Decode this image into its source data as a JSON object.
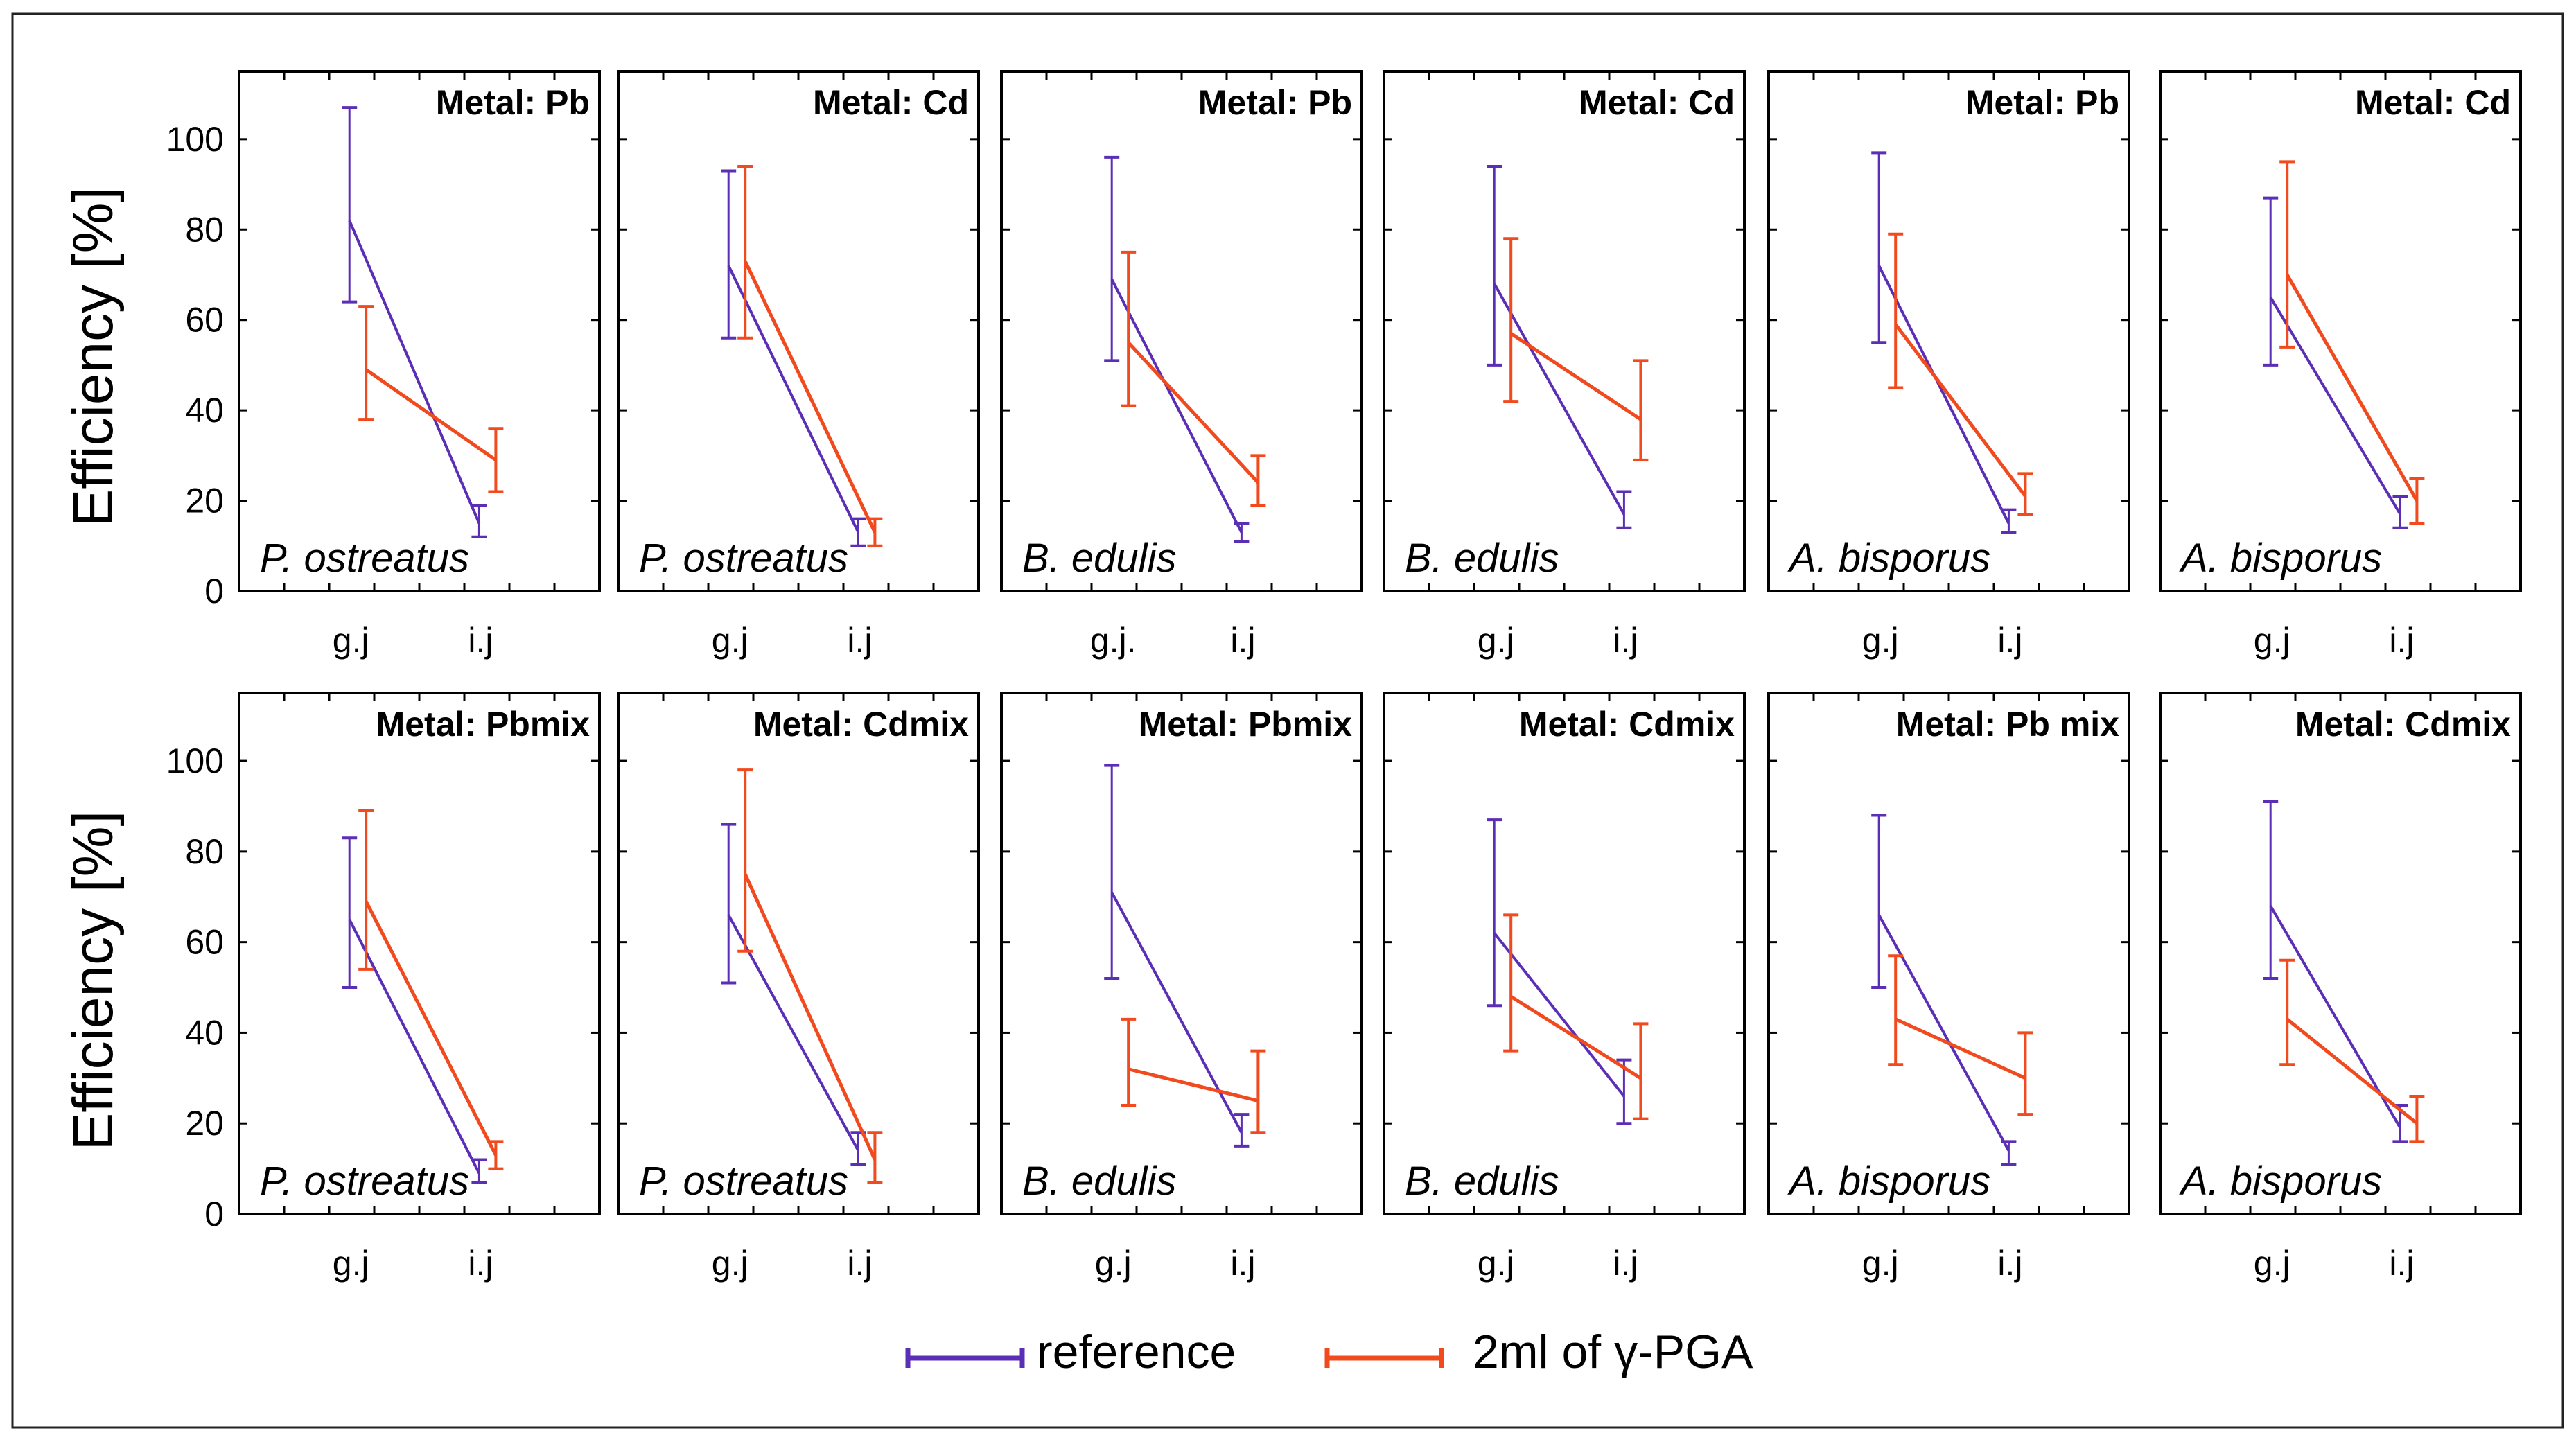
{
  "chart_data": {
    "type": "line",
    "ylabel": "Efficiency [%]",
    "ylim": [
      0,
      115
    ],
    "yticks": [
      0,
      20,
      40,
      60,
      80,
      100
    ],
    "legend": {
      "position": "bottom-center",
      "series": [
        {
          "name": "reference",
          "color": "#5b2fb5"
        },
        {
          "name": "2ml of γ-PGA",
          "color": "#f04a1e"
        }
      ]
    },
    "panels": [
      {
        "row": 1,
        "col": 1,
        "title": "Metal: Pb",
        "species": "P. ostreatus",
        "categories": [
          "g.j",
          "i.j"
        ],
        "series": [
          {
            "name": "reference",
            "values": [
              82,
              15
            ],
            "err_low": [
              64,
              12
            ],
            "err_high": [
              107,
              19
            ]
          },
          {
            "name": "2ml of γ-PGA",
            "values": [
              49,
              29
            ],
            "err_low": [
              38,
              22
            ],
            "err_high": [
              63,
              36
            ]
          }
        ]
      },
      {
        "row": 1,
        "col": 2,
        "title": "Metal: Cd",
        "species": "P. ostreatus",
        "categories": [
          "g.j",
          "i.j"
        ],
        "series": [
          {
            "name": "reference",
            "values": [
              72,
              13
            ],
            "err_low": [
              56,
              10
            ],
            "err_high": [
              93,
              16
            ]
          },
          {
            "name": "2ml of γ-PGA",
            "values": [
              73,
              13
            ],
            "err_low": [
              56,
              10
            ],
            "err_high": [
              94,
              16
            ]
          }
        ]
      },
      {
        "row": 1,
        "col": 3,
        "title": "Metal: Pb",
        "species": "B. edulis",
        "categories": [
          "g.j.",
          "i.j"
        ],
        "series": [
          {
            "name": "reference",
            "values": [
              69,
              13
            ],
            "err_low": [
              51,
              11
            ],
            "err_high": [
              96,
              15
            ]
          },
          {
            "name": "2ml of γ-PGA",
            "values": [
              55,
              24
            ],
            "err_low": [
              41,
              19
            ],
            "err_high": [
              75,
              30
            ]
          }
        ]
      },
      {
        "row": 1,
        "col": 4,
        "title": "Metal: Cd",
        "species": "B. edulis",
        "categories": [
          "g.j",
          "i.j"
        ],
        "series": [
          {
            "name": "reference",
            "values": [
              68,
              17
            ],
            "err_low": [
              50,
              14
            ],
            "err_high": [
              94,
              22
            ]
          },
          {
            "name": "2ml of γ-PGA",
            "values": [
              57,
              38
            ],
            "err_low": [
              42,
              29
            ],
            "err_high": [
              78,
              51
            ]
          }
        ]
      },
      {
        "row": 1,
        "col": 5,
        "title": "Metal: Pb",
        "species": "A. bisporus",
        "categories": [
          "g.j",
          "i.j"
        ],
        "series": [
          {
            "name": "reference",
            "values": [
              72,
              15
            ],
            "err_low": [
              55,
              13
            ],
            "err_high": [
              97,
              18
            ]
          },
          {
            "name": "2ml of γ-PGA",
            "values": [
              59,
              21
            ],
            "err_low": [
              45,
              17
            ],
            "err_high": [
              79,
              26
            ]
          }
        ]
      },
      {
        "row": 1,
        "col": 6,
        "title": "Metal: Cd",
        "species": "A. bisporus",
        "categories": [
          "g.j",
          "i.j"
        ],
        "series": [
          {
            "name": "reference",
            "values": [
              65,
              17
            ],
            "err_low": [
              50,
              14
            ],
            "err_high": [
              87,
              21
            ]
          },
          {
            "name": "2ml of γ-PGA",
            "values": [
              70,
              20
            ],
            "err_low": [
              54,
              15
            ],
            "err_high": [
              95,
              25
            ]
          }
        ]
      },
      {
        "row": 2,
        "col": 1,
        "title": "Metal: Pbmix",
        "species": "P. ostreatus",
        "categories": [
          "g.j",
          "i.j"
        ],
        "series": [
          {
            "name": "reference",
            "values": [
              65,
              9
            ],
            "err_low": [
              50,
              7
            ],
            "err_high": [
              83,
              12
            ]
          },
          {
            "name": "2ml of γ-PGA",
            "values": [
              69,
              13
            ],
            "err_low": [
              54,
              10
            ],
            "err_high": [
              89,
              16
            ]
          }
        ]
      },
      {
        "row": 2,
        "col": 2,
        "title": "Metal: Cdmix",
        "species": "P. ostreatus",
        "categories": [
          "g.j",
          "i.j"
        ],
        "series": [
          {
            "name": "reference",
            "values": [
              66,
              14
            ],
            "err_low": [
              51,
              11
            ],
            "err_high": [
              86,
              18
            ]
          },
          {
            "name": "2ml of γ-PGA",
            "values": [
              75,
              12
            ],
            "err_low": [
              58,
              7
            ],
            "err_high": [
              98,
              18
            ]
          }
        ]
      },
      {
        "row": 2,
        "col": 3,
        "title": "Metal: Pbmix",
        "species": "B. edulis",
        "categories": [
          "g.j",
          "i.j"
        ],
        "series": [
          {
            "name": "reference",
            "values": [
              71,
              18
            ],
            "err_low": [
              52,
              15
            ],
            "err_high": [
              99,
              22
            ]
          },
          {
            "name": "2ml of γ-PGA",
            "values": [
              32,
              25
            ],
            "err_low": [
              24,
              18
            ],
            "err_high": [
              43,
              36
            ]
          }
        ]
      },
      {
        "row": 2,
        "col": 4,
        "title": "Metal: Cdmix",
        "species": "B. edulis",
        "categories": [
          "g.j",
          "i.j"
        ],
        "series": [
          {
            "name": "reference",
            "values": [
              62,
              26
            ],
            "err_low": [
              46,
              20
            ],
            "err_high": [
              87,
              34
            ]
          },
          {
            "name": "2ml of γ-PGA",
            "values": [
              48,
              30
            ],
            "err_low": [
              36,
              21
            ],
            "err_high": [
              66,
              42
            ]
          }
        ]
      },
      {
        "row": 2,
        "col": 5,
        "title": "Metal: Pb mix",
        "species": "A. bisporus",
        "categories": [
          "g.j",
          "i.j"
        ],
        "series": [
          {
            "name": "reference",
            "values": [
              66,
              14
            ],
            "err_low": [
              50,
              11
            ],
            "err_high": [
              88,
              16
            ]
          },
          {
            "name": "2ml of γ-PGA",
            "values": [
              43,
              30
            ],
            "err_low": [
              33,
              22
            ],
            "err_high": [
              57,
              40
            ]
          }
        ]
      },
      {
        "row": 2,
        "col": 6,
        "title": "Metal: Cdmix",
        "species": "A. bisporus",
        "categories": [
          "g.j",
          "i.j"
        ],
        "series": [
          {
            "name": "reference",
            "values": [
              68,
              19
            ],
            "err_low": [
              52,
              16
            ],
            "err_high": [
              91,
              24
            ]
          },
          {
            "name": "2ml of γ-PGA",
            "values": [
              43,
              20
            ],
            "err_low": [
              33,
              16
            ],
            "err_high": [
              56,
              26
            ]
          }
        ]
      }
    ]
  }
}
